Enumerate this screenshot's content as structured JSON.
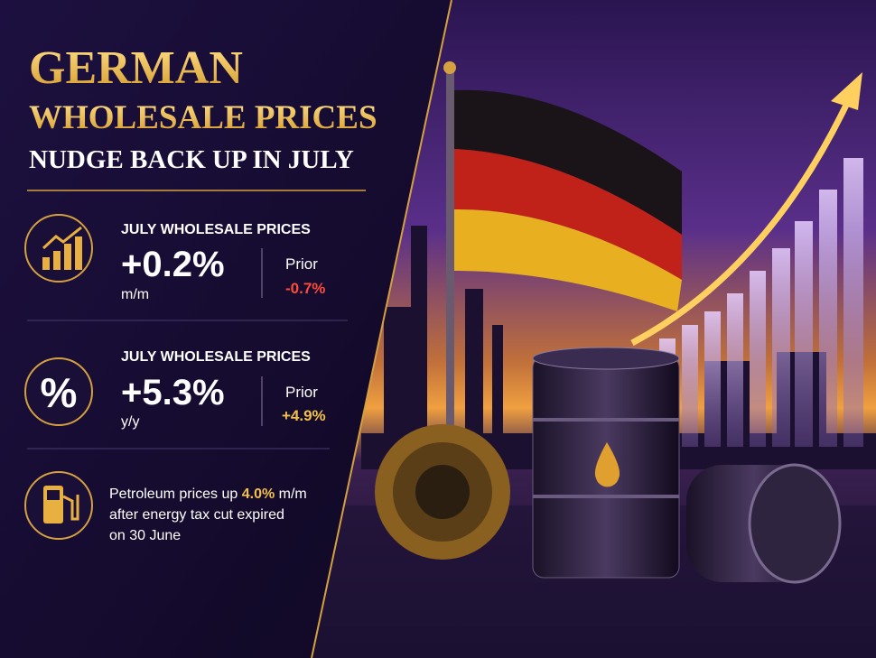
{
  "headline": {
    "line1": "GERMAN",
    "line2": "WHOLESALE PRICES",
    "line3": "NUDGE BACK UP IN JULY"
  },
  "stats": [
    {
      "label": "JULY WHOLESALE PRICES",
      "value": "+0.2%",
      "unit": "m/m",
      "prior_label": "Prior",
      "prior_value": "-0.7%"
    },
    {
      "label": "JULY WHOLESALE PRICES",
      "value": "+5.3%",
      "unit": "y/y",
      "prior_label": "Prior",
      "prior_value": "+4.9%"
    }
  ],
  "note": {
    "text_before": "Petroleum prices up ",
    "highlight": "4.0%",
    "text_after": " m/m",
    "line2": "after energy tax cut expired",
    "line3": "on 30 June"
  }
}
